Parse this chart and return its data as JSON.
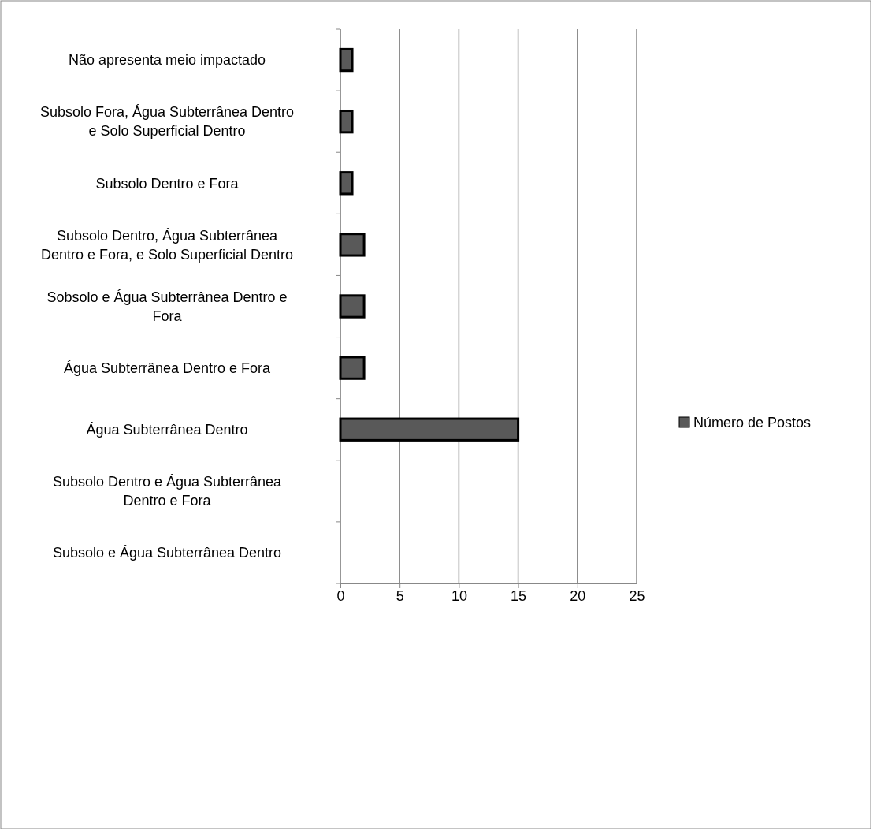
{
  "chart_data": {
    "type": "bar",
    "orientation": "horizontal",
    "categories": [
      "Não apresenta meio impactado",
      "Subsolo Fora, Água Subterrânea Dentro e Solo Superficial Dentro",
      "Subsolo Dentro e Fora",
      "Subsolo Dentro, Água Subterrânea Dentro e Fora, e Solo Superficial Dentro",
      "Sobsolo e Água Subterrânea Dentro e Fora",
      "Água Subterrânea Dentro e Fora",
      "Água Subterrânea Dentro",
      "Subsolo Dentro e Água Subterrânea Dentro e Fora",
      "Subsolo e Água Subterrânea Dentro"
    ],
    "series": [
      {
        "name": "Número de Postos",
        "color": "#595959",
        "values": [
          1,
          1,
          1,
          2,
          2,
          2,
          15,
          null,
          null
        ]
      }
    ],
    "xlim": [
      0,
      25
    ],
    "xticks": [
      0,
      5,
      10,
      15,
      20,
      25
    ],
    "grid": "x",
    "legend": "right"
  }
}
